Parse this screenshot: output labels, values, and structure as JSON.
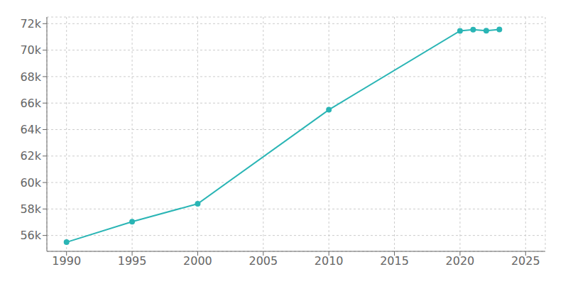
{
  "chart_data": {
    "type": "line",
    "x": [
      1990,
      1995,
      2000,
      2010,
      2020,
      2021,
      2022,
      2023
    ],
    "values": [
      55492,
      57037,
      58394,
      65496,
      71456,
      71551,
      71474,
      71557
    ],
    "color": "#2ab5b5",
    "marker": "circle",
    "xlim": [
      1988.5,
      2026.5
    ],
    "ylim": [
      54800,
      72500
    ],
    "xticks": [
      1990,
      1995,
      2000,
      2005,
      2010,
      2015,
      2020,
      2025
    ],
    "yticks": [
      {
        "value": 56000,
        "label": "56k"
      },
      {
        "value": 58000,
        "label": "58k"
      },
      {
        "value": 60000,
        "label": "60k"
      },
      {
        "value": 62000,
        "label": "62k"
      },
      {
        "value": 64000,
        "label": "64k"
      },
      {
        "value": 66000,
        "label": "66k"
      },
      {
        "value": 68000,
        "label": "68k"
      },
      {
        "value": 70000,
        "label": "70k"
      },
      {
        "value": 72000,
        "label": "72k"
      }
    ],
    "grid": true
  }
}
